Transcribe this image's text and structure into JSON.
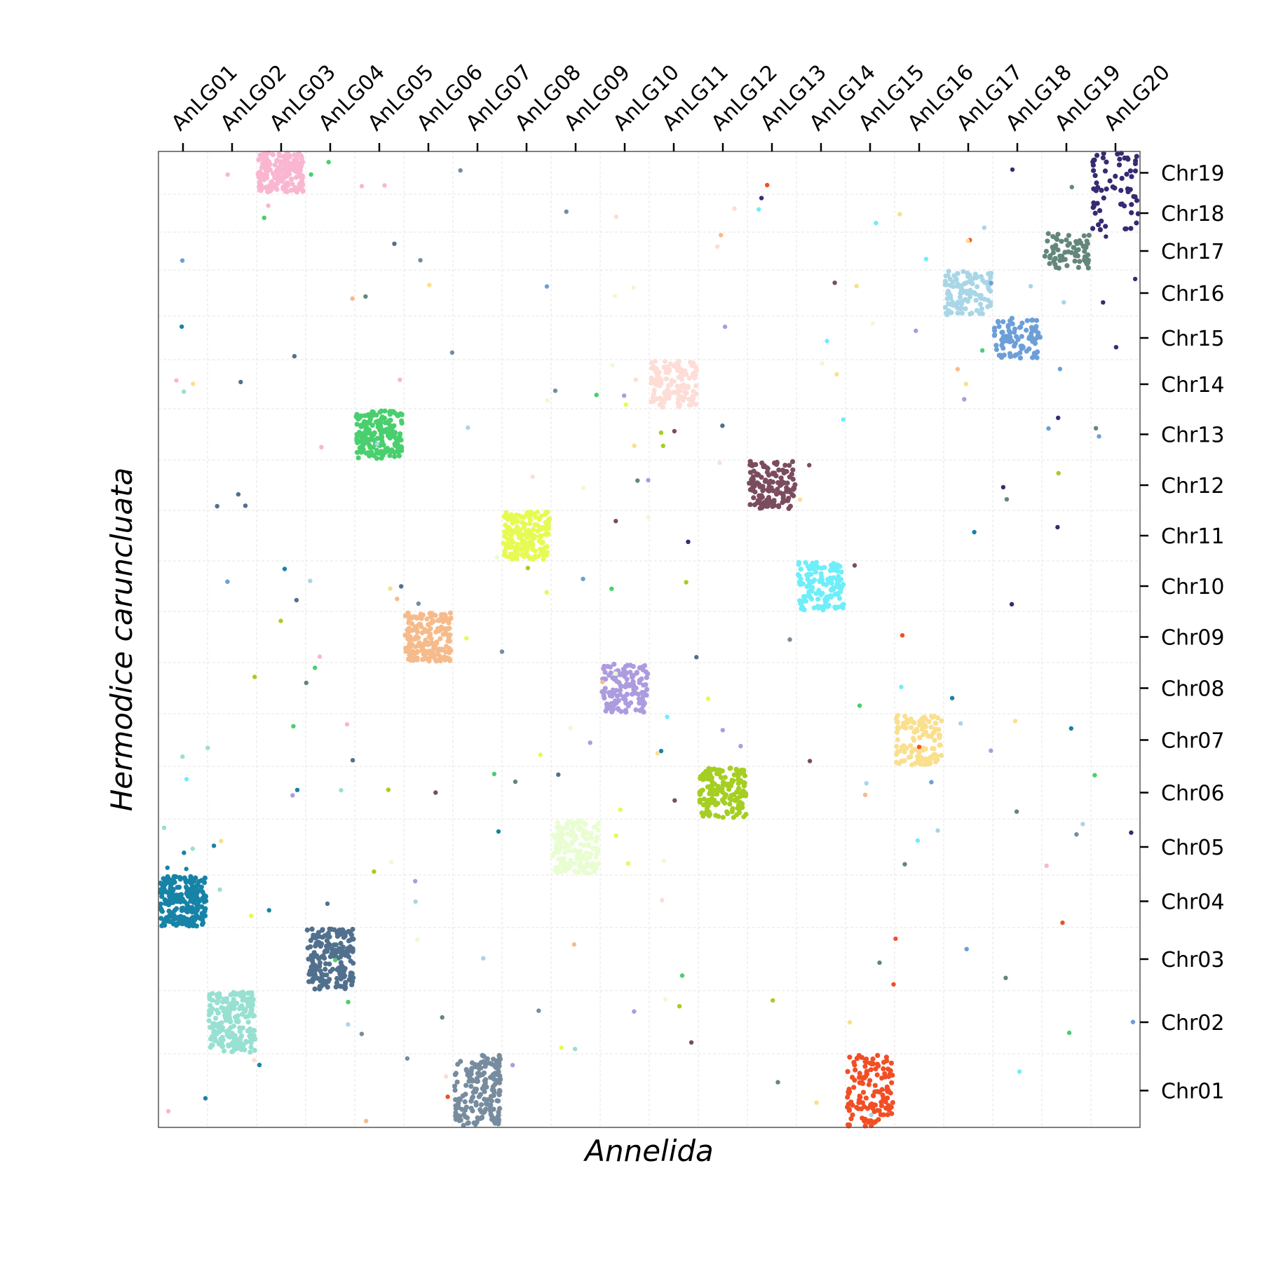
{
  "chart_data": {
    "type": "scatter",
    "xlabel": "Annelida",
    "ylabel": "Hermodice caruncluata",
    "x_categories": [
      "AnLG01",
      "AnLG02",
      "AnLG03",
      "AnLG04",
      "AnLG05",
      "AnLG06",
      "AnLG07",
      "AnLG08",
      "AnLG09",
      "AnLG10",
      "AnLG11",
      "AnLG12",
      "AnLG13",
      "AnLG14",
      "AnLG15",
      "AnLG16",
      "AnLG17",
      "AnLG18",
      "AnLG19",
      "AnLG20"
    ],
    "y_categories": [
      "Chr01",
      "Chr02",
      "Chr03",
      "Chr04",
      "Chr05",
      "Chr06",
      "Chr07",
      "Chr08",
      "Chr09",
      "Chr10",
      "Chr11",
      "Chr12",
      "Chr13",
      "Chr14",
      "Chr15",
      "Chr16",
      "Chr17",
      "Chr18",
      "Chr19"
    ],
    "x_axis_position": "top",
    "y_axis_position": "right",
    "grid": true,
    "series": [
      {
        "x_category": "AnLG01",
        "color": "#1783a6",
        "clusters": [
          {
            "y_category": "Chr04",
            "points": 240
          }
        ]
      },
      {
        "x_category": "AnLG02",
        "color": "#97e0d2",
        "clusters": [
          {
            "y_category": "Chr02",
            "points": 210
          }
        ]
      },
      {
        "x_category": "AnLG03",
        "color": "#fab6d0",
        "clusters": [
          {
            "y_category": "Chr19",
            "points": 200
          }
        ]
      },
      {
        "x_category": "AnLG04",
        "color": "#51708d",
        "clusters": [
          {
            "y_category": "Chr03",
            "points": 200
          }
        ]
      },
      {
        "x_category": "AnLG05",
        "color": "#49cf6e",
        "clusters": [
          {
            "y_category": "Chr13",
            "points": 180
          }
        ]
      },
      {
        "x_category": "AnLG06",
        "color": "#f6bb8a",
        "clusters": [
          {
            "y_category": "Chr09",
            "points": 180
          }
        ]
      },
      {
        "x_category": "AnLG07",
        "color": "#778c9e",
        "clusters": [
          {
            "y_category": "Chr01",
            "points": 170
          }
        ]
      },
      {
        "x_category": "AnLG08",
        "color": "#e7fa53",
        "clusters": [
          {
            "y_category": "Chr11",
            "points": 180
          }
        ]
      },
      {
        "x_category": "AnLG09",
        "color": "#e9fdd2",
        "clusters": [
          {
            "y_category": "Chr05",
            "points": 170
          }
        ]
      },
      {
        "x_category": "AnLG10",
        "color": "#ad9bdf",
        "clusters": [
          {
            "y_category": "Chr08",
            "points": 130
          }
        ]
      },
      {
        "x_category": "AnLG11",
        "color": "#fdddd6",
        "clusters": [
          {
            "y_category": "Chr14",
            "points": 130
          }
        ]
      },
      {
        "x_category": "AnLG12",
        "color": "#a5ce22",
        "clusters": [
          {
            "y_category": "Chr06",
            "points": 170
          }
        ]
      },
      {
        "x_category": "AnLG13",
        "color": "#7b4c5f",
        "clusters": [
          {
            "y_category": "Chr12",
            "points": 130
          }
        ]
      },
      {
        "x_category": "AnLG14",
        "color": "#6eeef9",
        "clusters": [
          {
            "y_category": "Chr10",
            "points": 140
          }
        ]
      },
      {
        "x_category": "AnLG15",
        "color": "#f24e25",
        "clusters": [
          {
            "y_category": "Chr01",
            "points": 130
          }
        ]
      },
      {
        "x_category": "AnLG16",
        "color": "#fadf8d",
        "clusters": [
          {
            "y_category": "Chr07",
            "points": 120
          }
        ]
      },
      {
        "x_category": "AnLG17",
        "color": "#a8d6e6",
        "clusters": [
          {
            "y_category": "Chr16",
            "points": 110
          }
        ]
      },
      {
        "x_category": "AnLG18",
        "color": "#6d9fd7",
        "clusters": [
          {
            "y_category": "Chr15",
            "points": 90
          }
        ]
      },
      {
        "x_category": "AnLG19",
        "color": "#63877a",
        "clusters": [
          {
            "y_category": "Chr17",
            "points": 70
          }
        ]
      },
      {
        "x_category": "AnLG20",
        "color": "#372a72",
        "clusters": [
          {
            "y_category": "Chr19",
            "points": 40
          },
          {
            "y_category": "Chr18",
            "points": 25
          }
        ]
      }
    ]
  }
}
